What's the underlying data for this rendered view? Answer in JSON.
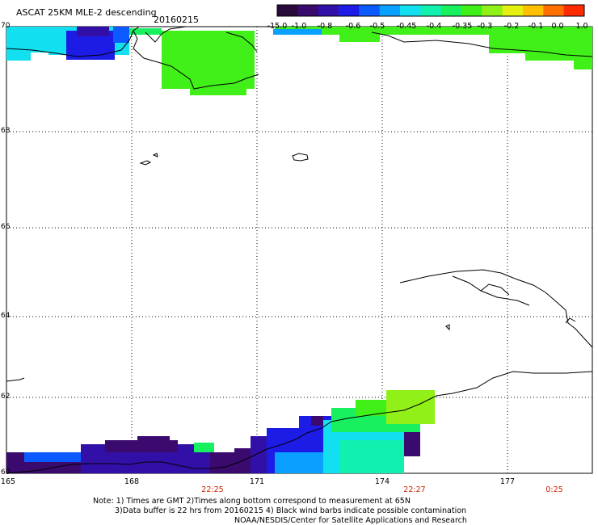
{
  "header": {
    "title": "ASCAT 25KM MLE-2 descending",
    "date": "20160215"
  },
  "colorbar": {
    "ticks": [
      "-15.0",
      "-1.0",
      "-0.8",
      "-0.6",
      "-0.5",
      "-0.45",
      "-0.4",
      "-0.35",
      "-0.3",
      "-0.2",
      "-0.1",
      "0.0",
      "1.0"
    ],
    "colors": [
      "#2a0a3a",
      "#3a0a6e",
      "#3210a8",
      "#1c1ce6",
      "#0a5aff",
      "#0aa0ff",
      "#12e0f0",
      "#12f0b0",
      "#18f060",
      "#40f018",
      "#90f018",
      "#e6f010",
      "#ffc000",
      "#ff7000",
      "#ff2a00"
    ]
  },
  "map": {
    "lat_labels": [
      "70",
      "68",
      "66",
      "64",
      "62",
      "60"
    ],
    "lon_labels": [
      "165",
      "168",
      "171",
      "174",
      "177"
    ],
    "time_labels": [
      "22:25",
      "22:27",
      "0:25"
    ]
  },
  "footer": {
    "note_line1": "Note: 1) Times are GMT 2)Times along bottom correspond to measurement at 65N",
    "note_line2": "3)Data buffer is 22 hrs from 20160215 4) Black wind barbs indicate possible contamination",
    "credit": "NOAA/NESDIS/Center for Satellite Applications and Research"
  }
}
